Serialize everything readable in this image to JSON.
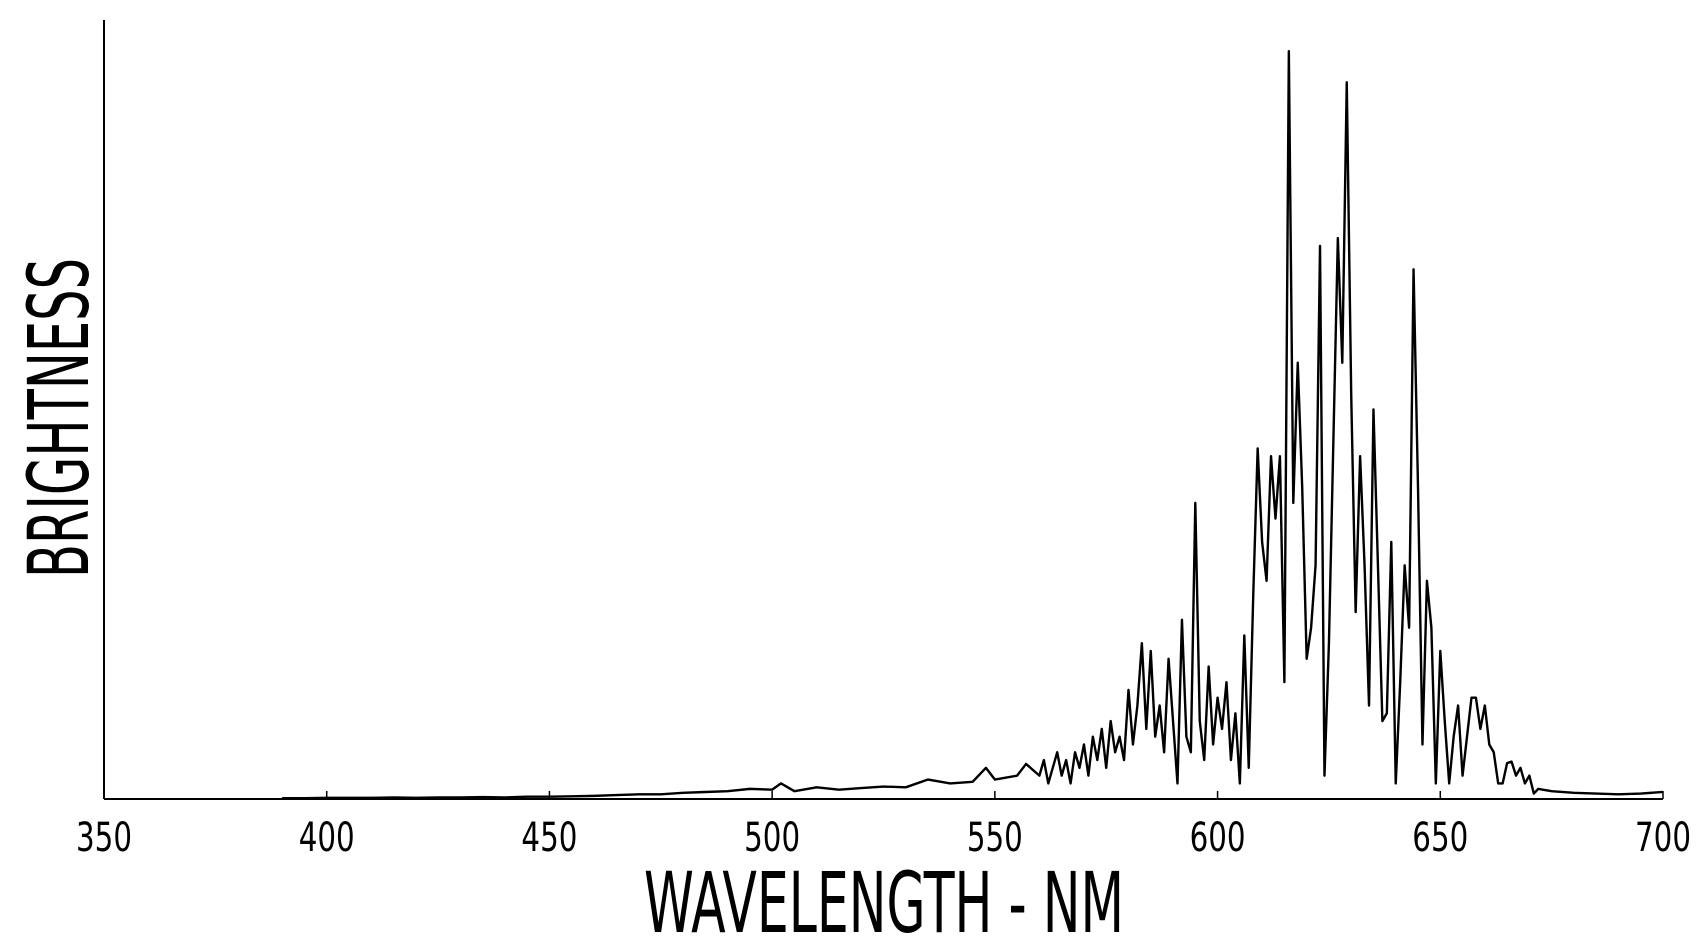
{
  "chart_data": {
    "type": "line",
    "xlabel": "WAVELENGTH - NM",
    "ylabel": "BRIGHTNESS",
    "xlim": [
      350,
      700
    ],
    "xticks": [
      350,
      400,
      450,
      500,
      550,
      600,
      650,
      700
    ],
    "ylim": [
      0,
      100
    ],
    "series": [
      {
        "color": "#000000",
        "x": [
          390,
          395,
          400,
          405,
          410,
          415,
          420,
          425,
          430,
          435,
          440,
          445,
          450,
          455,
          460,
          465,
          470,
          475,
          480,
          485,
          490,
          495,
          500,
          502,
          505,
          510,
          515,
          520,
          525,
          530,
          535,
          540,
          545,
          548,
          550,
          555,
          557,
          560,
          561,
          562,
          563,
          564,
          565,
          566,
          567,
          568,
          569,
          570,
          571,
          572,
          573,
          574,
          575,
          576,
          577,
          578,
          579,
          580,
          581,
          582,
          583,
          584,
          585,
          586,
          587,
          588,
          589,
          590,
          591,
          592,
          593,
          594,
          595,
          596,
          597,
          598,
          599,
          600,
          601,
          602,
          603,
          604,
          605,
          606,
          607,
          608,
          609,
          610,
          611,
          612,
          613,
          614,
          615,
          616,
          617,
          618,
          619,
          620,
          621,
          622,
          623,
          624,
          625,
          626,
          627,
          628,
          629,
          630,
          631,
          632,
          633,
          634,
          635,
          636,
          637,
          638,
          639,
          640,
          641,
          642,
          643,
          644,
          645,
          646,
          647,
          648,
          649,
          650,
          651,
          652,
          653,
          654,
          655,
          656,
          657,
          658,
          659,
          660,
          661,
          662,
          663,
          664,
          665,
          666,
          667,
          668,
          669,
          670,
          671,
          672,
          673,
          675,
          680,
          685,
          690,
          695,
          700
        ],
        "values": [
          0.1,
          0.1,
          0.15,
          0.15,
          0.15,
          0.2,
          0.15,
          0.2,
          0.2,
          0.25,
          0.2,
          0.3,
          0.3,
          0.35,
          0.4,
          0.5,
          0.6,
          0.6,
          0.8,
          0.9,
          1,
          1.3,
          1.2,
          2,
          1,
          1.5,
          1.2,
          1.4,
          1.6,
          1.5,
          2.5,
          2,
          2.2,
          4,
          2.5,
          3,
          4.5,
          3,
          5,
          2,
          4,
          6,
          3,
          5,
          2,
          6,
          4,
          7,
          3,
          8,
          5,
          9,
          4,
          10,
          6,
          8,
          5,
          14,
          7,
          12,
          20,
          9,
          19,
          8,
          12,
          6,
          18,
          10,
          2,
          23,
          8,
          6,
          38,
          10,
          5,
          17,
          7,
          13,
          9,
          15,
          5,
          11,
          2,
          21,
          4,
          26,
          45,
          33,
          28,
          44,
          36,
          44,
          15,
          96,
          38,
          56,
          40,
          18,
          22,
          30,
          71,
          3,
          20,
          46,
          72,
          56,
          92,
          52,
          24,
          44,
          30,
          12,
          50,
          30,
          10,
          11,
          33,
          2,
          15,
          30,
          22,
          68,
          40,
          7,
          28,
          22,
          2,
          19,
          10,
          2,
          8,
          12,
          3,
          8,
          13,
          13,
          9,
          12,
          7,
          6,
          2,
          2,
          4.6,
          4.8,
          3,
          4,
          2,
          3,
          0.7,
          1.3,
          1.2,
          1,
          0.8,
          0.7,
          0.6,
          0.7,
          0.9
        ]
      }
    ]
  }
}
